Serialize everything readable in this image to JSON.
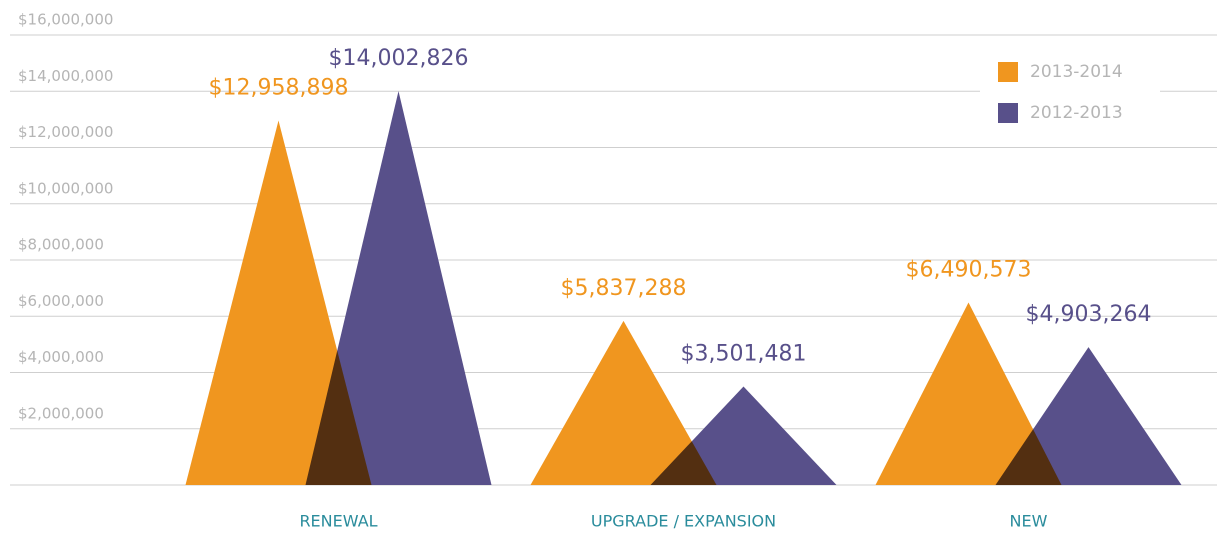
{
  "chart_data": {
    "type": "triangle_bar",
    "categories": [
      "RENEWAL",
      "UPGRADE / EXPANSION",
      "NEW"
    ],
    "series": [
      {
        "name": "2013-2014",
        "color": "#f0961f",
        "values": [
          12958898,
          5837288,
          6490573
        ],
        "value_labels": [
          "$12,958,898",
          "$5,837,288",
          "$6,490,573"
        ]
      },
      {
        "name": "2012-2013",
        "color": "#58508a",
        "values": [
          14002826,
          3501481,
          4903264
        ],
        "value_labels": [
          "$14,002,826",
          "$3,501,481",
          "$4,903,264"
        ]
      }
    ],
    "ylim": [
      0,
      16000000
    ],
    "yticks": [
      {
        "value": 2000000,
        "label": "$2,000,000"
      },
      {
        "value": 4000000,
        "label": "$4,000,000"
      },
      {
        "value": 6000000,
        "label": "$6,000,000"
      },
      {
        "value": 8000000,
        "label": "$8,000,000"
      },
      {
        "value": 10000000,
        "label": "$10,000,000"
      },
      {
        "value": 12000000,
        "label": "$12,000,000"
      },
      {
        "value": 14000000,
        "label": "$14,000,000"
      },
      {
        "value": 16000000,
        "label": "$16,000,000"
      }
    ],
    "grid": true,
    "legend": "top-right"
  }
}
